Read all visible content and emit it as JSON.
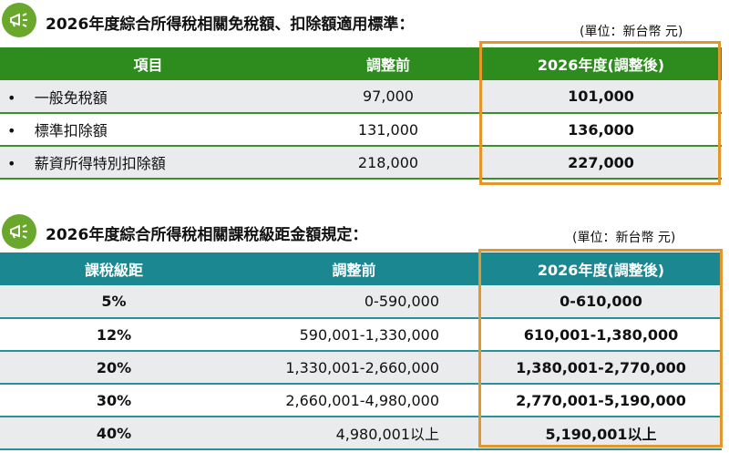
{
  "section1": {
    "title": "2026年度綜合所得稅相關免稅額、扣除額適用標準：",
    "unit": "(單位：新台幣 元)",
    "icon": "megaphone-icon",
    "headers": [
      "項目",
      "調整前",
      "2026年度(調整後)"
    ],
    "rows": [
      {
        "item": "一般免稅額",
        "before": "97,000",
        "after": "101,000"
      },
      {
        "item": "標準扣除額",
        "before": "131,000",
        "after": "136,000"
      },
      {
        "item": "薪資所得特別扣除額",
        "before": "218,000",
        "after": "227,000"
      }
    ]
  },
  "section2": {
    "title": "2026年度綜合所得稅相關課稅級距金額規定：",
    "unit": "(單位：新台幣 元)",
    "icon": "megaphone-icon",
    "headers": [
      "課稅級距",
      "調整前",
      "2026年度(調整後)"
    ],
    "rows": [
      {
        "rate": "5%",
        "before": "0-590,000",
        "after": "0-610,000"
      },
      {
        "rate": "12%",
        "before": "590,001-1,330,000",
        "after": "610,001-1,380,000"
      },
      {
        "rate": "20%",
        "before": "1,330,001-2,660,000",
        "after": "1,380,001-2,770,000"
      },
      {
        "rate": "30%",
        "before": "2,660,001-4,980,000",
        "after": "2,770,001-5,190,000"
      },
      {
        "rate": "40%",
        "before": "4,980,001以上",
        "after": "5,190,001以上"
      }
    ]
  },
  "colors": {
    "green_header": "#2e8b1e",
    "teal_header": "#1b8891",
    "highlight_border": "#e3962b",
    "icon_bg": "#6aa82d"
  }
}
